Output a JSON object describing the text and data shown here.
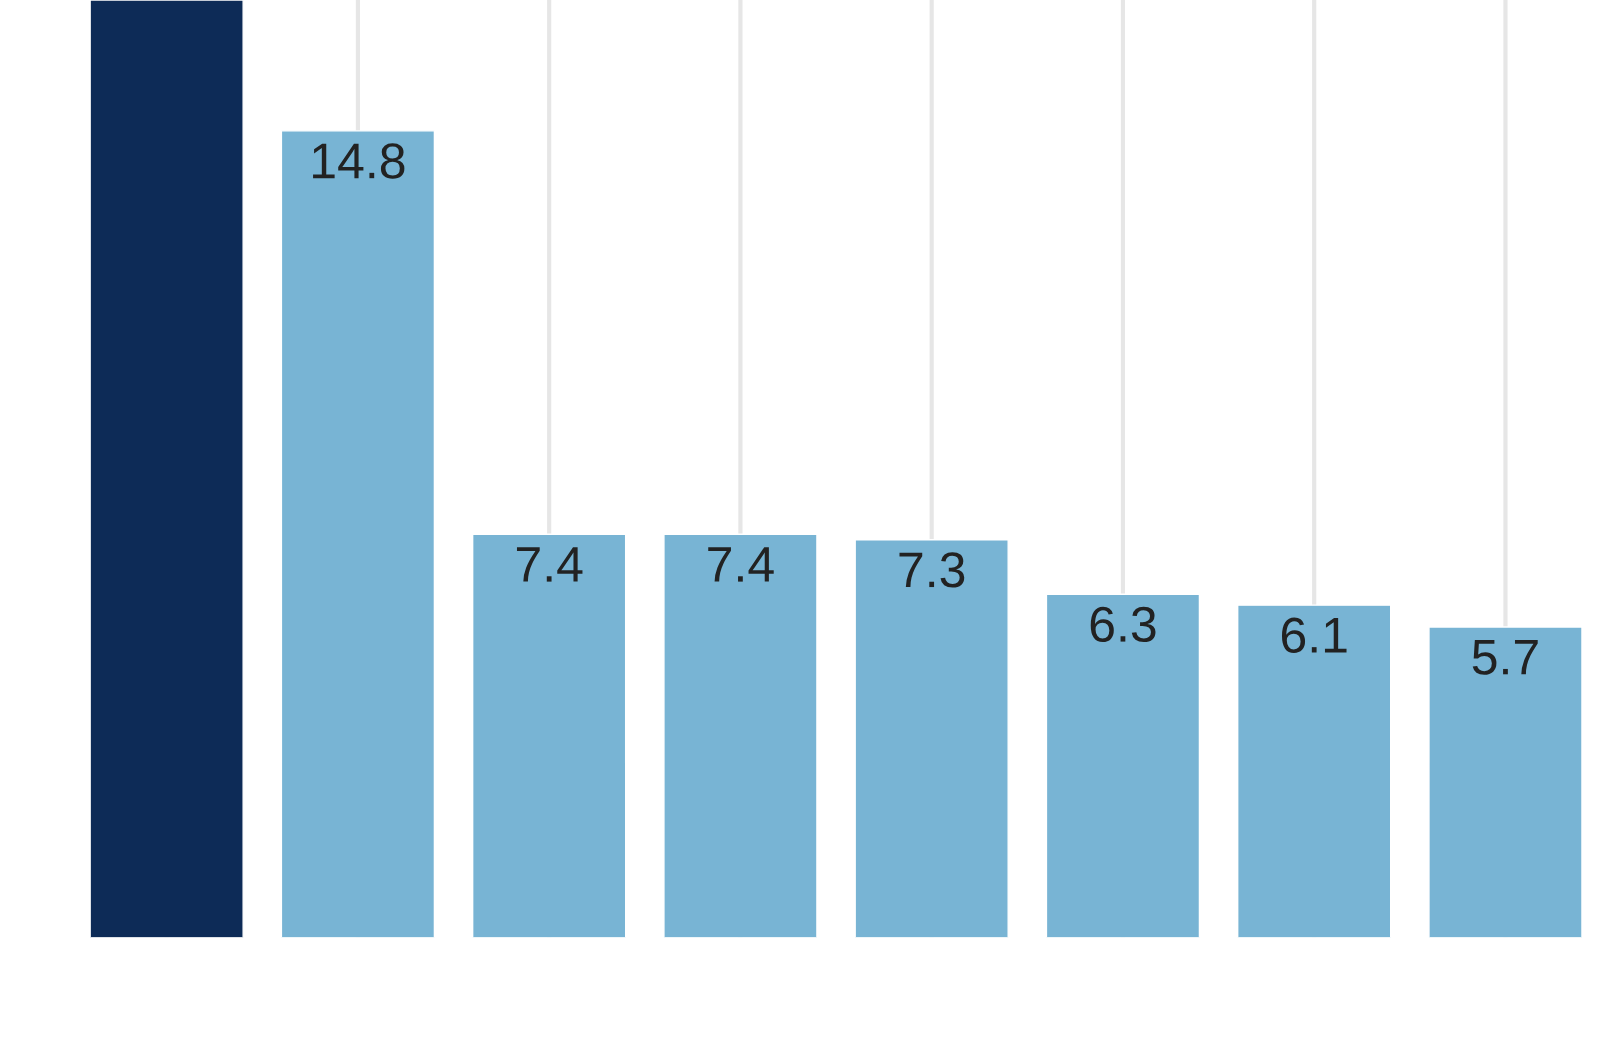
{
  "chart_data": {
    "type": "bar",
    "categories": [
      null,
      null,
      null,
      null,
      null,
      null,
      null,
      null
    ],
    "values": [
      17.2,
      14.8,
      7.4,
      7.4,
      7.3,
      6.3,
      6.1,
      5.7
    ],
    "value_labels": [
      null,
      "14.8",
      "7.4",
      "7.4",
      "7.3",
      "6.3",
      "6.1",
      "5.7"
    ],
    "colors": [
      "#0d2b57",
      "#78b4d4",
      "#78b4d4",
      "#78b4d4",
      "#78b4d4",
      "#78b4d4",
      "#78b4d4",
      "#78b4d4"
    ],
    "ylim": [
      0,
      17.2
    ],
    "grid": "x",
    "legend": false
  }
}
